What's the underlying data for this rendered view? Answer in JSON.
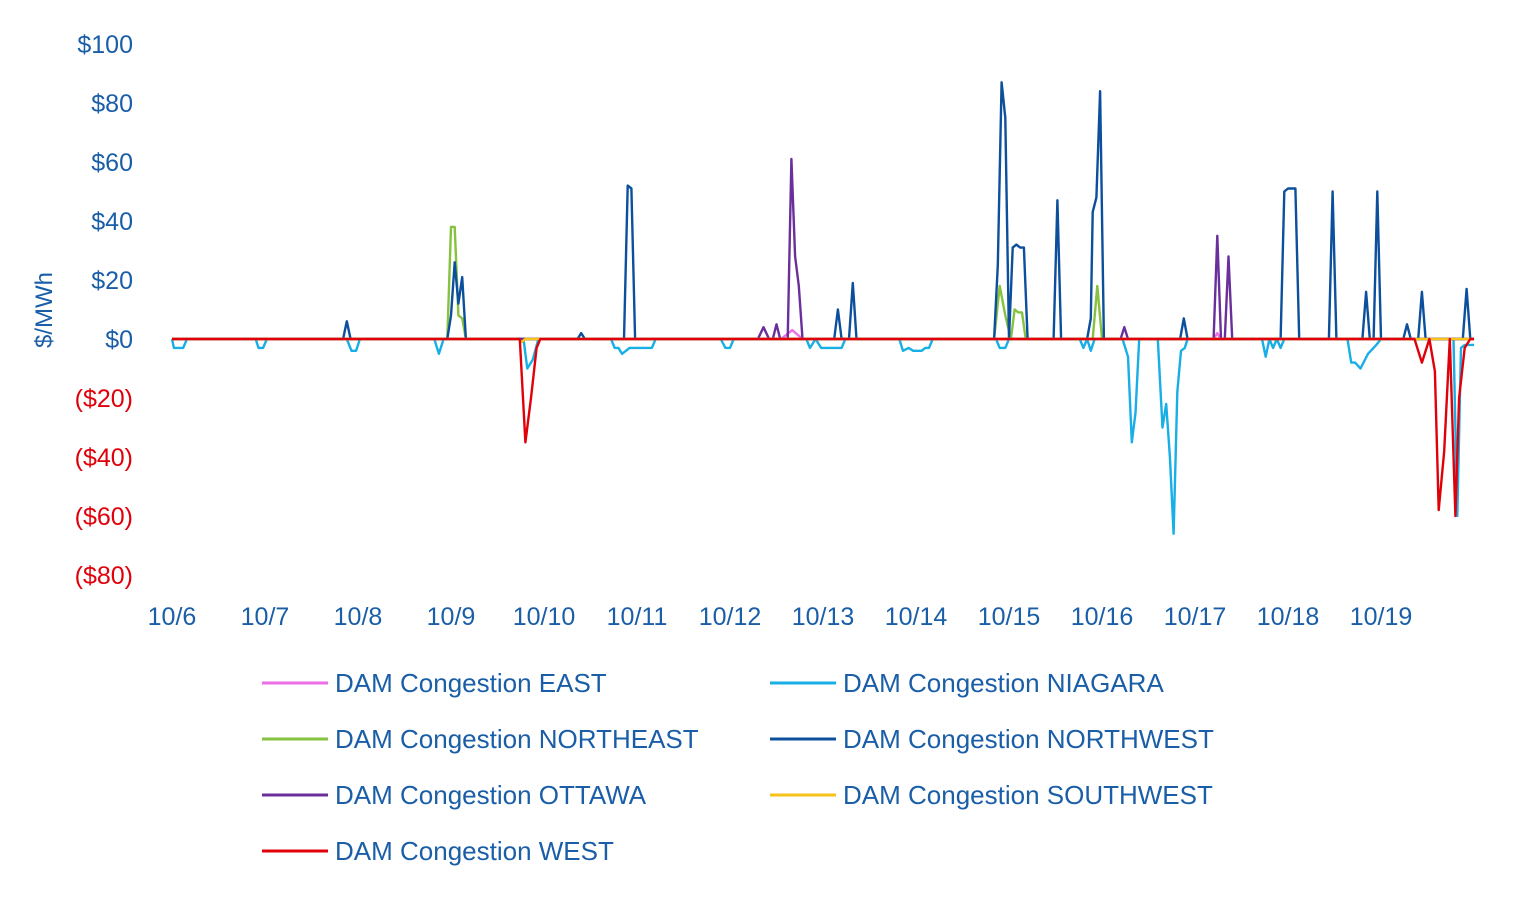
{
  "chart_data": {
    "type": "line",
    "title": "",
    "xlabel": "",
    "ylabel": "$/MWh",
    "ylim": [
      -80,
      100
    ],
    "y_ticks": [
      {
        "value": 100,
        "label": "$100",
        "negative": false
      },
      {
        "value": 80,
        "label": "$80",
        "negative": false
      },
      {
        "value": 60,
        "label": "$60",
        "negative": false
      },
      {
        "value": 40,
        "label": "$40",
        "negative": false
      },
      {
        "value": 20,
        "label": "$20",
        "negative": false
      },
      {
        "value": 0,
        "label": "$0",
        "negative": false
      },
      {
        "value": -20,
        "label": "($20)",
        "negative": true
      },
      {
        "value": -40,
        "label": "($40)",
        "negative": true
      },
      {
        "value": -60,
        "label": "($60)",
        "negative": true
      },
      {
        "value": -80,
        "label": "($80)",
        "negative": true
      }
    ],
    "categories": [
      "10/6",
      "10/7",
      "10/8",
      "10/9",
      "10/10",
      "10/11",
      "10/12",
      "10/13",
      "10/14",
      "10/15",
      "10/16",
      "10/17",
      "10/18",
      "10/19"
    ],
    "x_range_days": [
      0,
      14
    ],
    "colors": {
      "axis_text": "#1a5ea8",
      "negative_text": "#e0000a",
      "zero_line": "#cfcfcf"
    },
    "series": [
      {
        "name": "DAM Congestion EAST",
        "color": "#ee6ee8",
        "points": [
          [
            0,
            0
          ],
          [
            6.55,
            0
          ],
          [
            6.67,
            3
          ],
          [
            6.78,
            0
          ],
          [
            11.2,
            0
          ],
          [
            11.24,
            2
          ],
          [
            11.28,
            0
          ],
          [
            14,
            0
          ]
        ]
      },
      {
        "name": "DAM Congestion NIAGARA",
        "color": "#18aee6",
        "points": [
          [
            0,
            0
          ],
          [
            0.02,
            -3
          ],
          [
            0.12,
            -3
          ],
          [
            0.16,
            0
          ],
          [
            0.9,
            0
          ],
          [
            0.93,
            -3
          ],
          [
            0.98,
            -3
          ],
          [
            1.02,
            0
          ],
          [
            1.88,
            0
          ],
          [
            1.93,
            -4
          ],
          [
            1.98,
            -4
          ],
          [
            2.02,
            0
          ],
          [
            2.82,
            0
          ],
          [
            2.87,
            -5
          ],
          [
            2.92,
            0
          ],
          [
            3.78,
            0
          ],
          [
            3.82,
            -10
          ],
          [
            3.88,
            -7
          ],
          [
            3.94,
            0
          ],
          [
            4.72,
            0
          ],
          [
            4.76,
            -3
          ],
          [
            4.8,
            -3
          ],
          [
            4.84,
            -5
          ],
          [
            4.92,
            -3
          ],
          [
            5.04,
            -3
          ],
          [
            5.16,
            -3
          ],
          [
            5.2,
            0
          ],
          [
            5.9,
            0
          ],
          [
            5.95,
            -3
          ],
          [
            6.0,
            -3
          ],
          [
            6.04,
            0
          ],
          [
            6.82,
            0
          ],
          [
            6.86,
            -3
          ],
          [
            6.92,
            0
          ],
          [
            6.98,
            -3
          ],
          [
            7.2,
            -3
          ],
          [
            7.24,
            0
          ],
          [
            7.82,
            0
          ],
          [
            7.86,
            -4
          ],
          [
            7.92,
            -3
          ],
          [
            7.97,
            -4
          ],
          [
            8.06,
            -4
          ],
          [
            8.1,
            -3
          ],
          [
            8.14,
            -3
          ],
          [
            8.18,
            0
          ],
          [
            8.86,
            0
          ],
          [
            8.9,
            -3
          ],
          [
            8.96,
            -3
          ],
          [
            9.0,
            0
          ],
          [
            9.76,
            0
          ],
          [
            9.8,
            -3
          ],
          [
            9.84,
            0
          ],
          [
            9.88,
            -4
          ],
          [
            9.92,
            0
          ],
          [
            10.22,
            0
          ],
          [
            10.28,
            -6
          ],
          [
            10.32,
            -35
          ],
          [
            10.36,
            -25
          ],
          [
            10.4,
            0
          ],
          [
            10.6,
            0
          ],
          [
            10.65,
            -30
          ],
          [
            10.69,
            -22
          ],
          [
            10.73,
            -40
          ],
          [
            10.77,
            -66
          ],
          [
            10.81,
            -18
          ],
          [
            10.85,
            -4
          ],
          [
            10.89,
            -3
          ],
          [
            10.92,
            0
          ],
          [
            11.72,
            0
          ],
          [
            11.76,
            -6
          ],
          [
            11.8,
            0
          ],
          [
            11.84,
            -3
          ],
          [
            11.88,
            0
          ],
          [
            11.92,
            -3
          ],
          [
            11.96,
            0
          ],
          [
            12.64,
            0
          ],
          [
            12.68,
            -8
          ],
          [
            12.72,
            -8
          ],
          [
            12.78,
            -10
          ],
          [
            12.86,
            -5
          ],
          [
            12.95,
            -2
          ],
          [
            13.0,
            0
          ],
          [
            13.78,
            0
          ],
          [
            13.82,
            -60
          ],
          [
            13.86,
            -3
          ],
          [
            13.9,
            -2
          ],
          [
            13.96,
            -2
          ],
          [
            14.0,
            -2
          ]
        ]
      },
      {
        "name": "DAM Congestion NORTHEAST",
        "color": "#86c240",
        "points": [
          [
            0,
            0
          ],
          [
            2.96,
            0
          ],
          [
            3.0,
            38
          ],
          [
            3.04,
            38
          ],
          [
            3.08,
            8
          ],
          [
            3.12,
            7
          ],
          [
            3.16,
            0
          ],
          [
            8.84,
            0
          ],
          [
            8.9,
            18
          ],
          [
            8.96,
            8
          ],
          [
            9.02,
            0
          ],
          [
            9.06,
            10
          ],
          [
            9.1,
            9
          ],
          [
            9.14,
            9
          ],
          [
            9.18,
            0
          ],
          [
            9.9,
            0
          ],
          [
            9.95,
            18
          ],
          [
            10.0,
            0
          ],
          [
            14,
            0
          ]
        ]
      },
      {
        "name": "DAM Congestion NORTHWEST",
        "color": "#0c4f9c",
        "points": [
          [
            0,
            0
          ],
          [
            1.84,
            0
          ],
          [
            1.88,
            6
          ],
          [
            1.92,
            0
          ],
          [
            2.96,
            0
          ],
          [
            3.0,
            8
          ],
          [
            3.04,
            26
          ],
          [
            3.08,
            12
          ],
          [
            3.12,
            21
          ],
          [
            3.16,
            0
          ],
          [
            4.36,
            0
          ],
          [
            4.4,
            2
          ],
          [
            4.44,
            0
          ],
          [
            4.86,
            0
          ],
          [
            4.9,
            52
          ],
          [
            4.94,
            51
          ],
          [
            4.98,
            0
          ],
          [
            7.12,
            0
          ],
          [
            7.16,
            10
          ],
          [
            7.2,
            0
          ],
          [
            7.28,
            0
          ],
          [
            7.32,
            19
          ],
          [
            7.36,
            0
          ],
          [
            8.84,
            0
          ],
          [
            8.88,
            25
          ],
          [
            8.92,
            87
          ],
          [
            8.96,
            75
          ],
          [
            9.0,
            0
          ],
          [
            9.04,
            31
          ],
          [
            9.08,
            32
          ],
          [
            9.12,
            31
          ],
          [
            9.16,
            31
          ],
          [
            9.2,
            0
          ],
          [
            9.48,
            0
          ],
          [
            9.52,
            47
          ],
          [
            9.56,
            0
          ],
          [
            9.84,
            0
          ],
          [
            9.88,
            7
          ],
          [
            9.9,
            43
          ],
          [
            9.94,
            48
          ],
          [
            9.98,
            84
          ],
          [
            10.02,
            0
          ],
          [
            10.84,
            0
          ],
          [
            10.88,
            7
          ],
          [
            10.92,
            0
          ],
          [
            11.92,
            0
          ],
          [
            11.96,
            50
          ],
          [
            12.0,
            51
          ],
          [
            12.08,
            51
          ],
          [
            12.12,
            0
          ],
          [
            12.44,
            0
          ],
          [
            12.48,
            50
          ],
          [
            12.52,
            0
          ],
          [
            12.8,
            0
          ],
          [
            12.84,
            16
          ],
          [
            12.88,
            0
          ],
          [
            12.92,
            0
          ],
          [
            12.96,
            50
          ],
          [
            13.0,
            0
          ],
          [
            13.24,
            0
          ],
          [
            13.28,
            5
          ],
          [
            13.32,
            0
          ],
          [
            13.4,
            0
          ],
          [
            13.44,
            16
          ],
          [
            13.48,
            0
          ],
          [
            13.88,
            0
          ],
          [
            13.92,
            17
          ],
          [
            13.96,
            0
          ],
          [
            14,
            0
          ]
        ]
      },
      {
        "name": "DAM Congestion OTTAWA",
        "color": "#6b2f9c",
        "points": [
          [
            0,
            0
          ],
          [
            6.3,
            0
          ],
          [
            6.36,
            4
          ],
          [
            6.42,
            0
          ],
          [
            6.46,
            0
          ],
          [
            6.5,
            5
          ],
          [
            6.54,
            0
          ],
          [
            6.62,
            0
          ],
          [
            6.66,
            61
          ],
          [
            6.7,
            28
          ],
          [
            6.74,
            18
          ],
          [
            6.78,
            0
          ],
          [
            10.2,
            0
          ],
          [
            10.24,
            4
          ],
          [
            10.28,
            0
          ],
          [
            11.2,
            0
          ],
          [
            11.24,
            35
          ],
          [
            11.28,
            0
          ],
          [
            11.32,
            0
          ],
          [
            11.36,
            28
          ],
          [
            11.4,
            0
          ],
          [
            14,
            0
          ]
        ]
      },
      {
        "name": "DAM Congestion SOUTHWEST",
        "color": "#f7c21a",
        "points": [
          [
            0,
            0
          ],
          [
            3.72,
            0
          ],
          [
            3.76,
            -1
          ],
          [
            3.8,
            0
          ],
          [
            14,
            0
          ]
        ]
      },
      {
        "name": "DAM Congestion WEST",
        "color": "#e0000a",
        "points": [
          [
            0,
            0
          ],
          [
            3.74,
            0
          ],
          [
            3.8,
            -35
          ],
          [
            3.86,
            -20
          ],
          [
            3.92,
            -3
          ],
          [
            3.96,
            0
          ],
          [
            13.36,
            0
          ],
          [
            13.44,
            -8
          ],
          [
            13.52,
            0
          ],
          [
            13.58,
            -11
          ],
          [
            13.62,
            -58
          ],
          [
            13.68,
            -38
          ],
          [
            13.74,
            0
          ],
          [
            13.8,
            -60
          ],
          [
            13.84,
            -20
          ],
          [
            13.9,
            -3
          ],
          [
            13.96,
            0
          ],
          [
            14,
            0
          ]
        ]
      }
    ]
  }
}
